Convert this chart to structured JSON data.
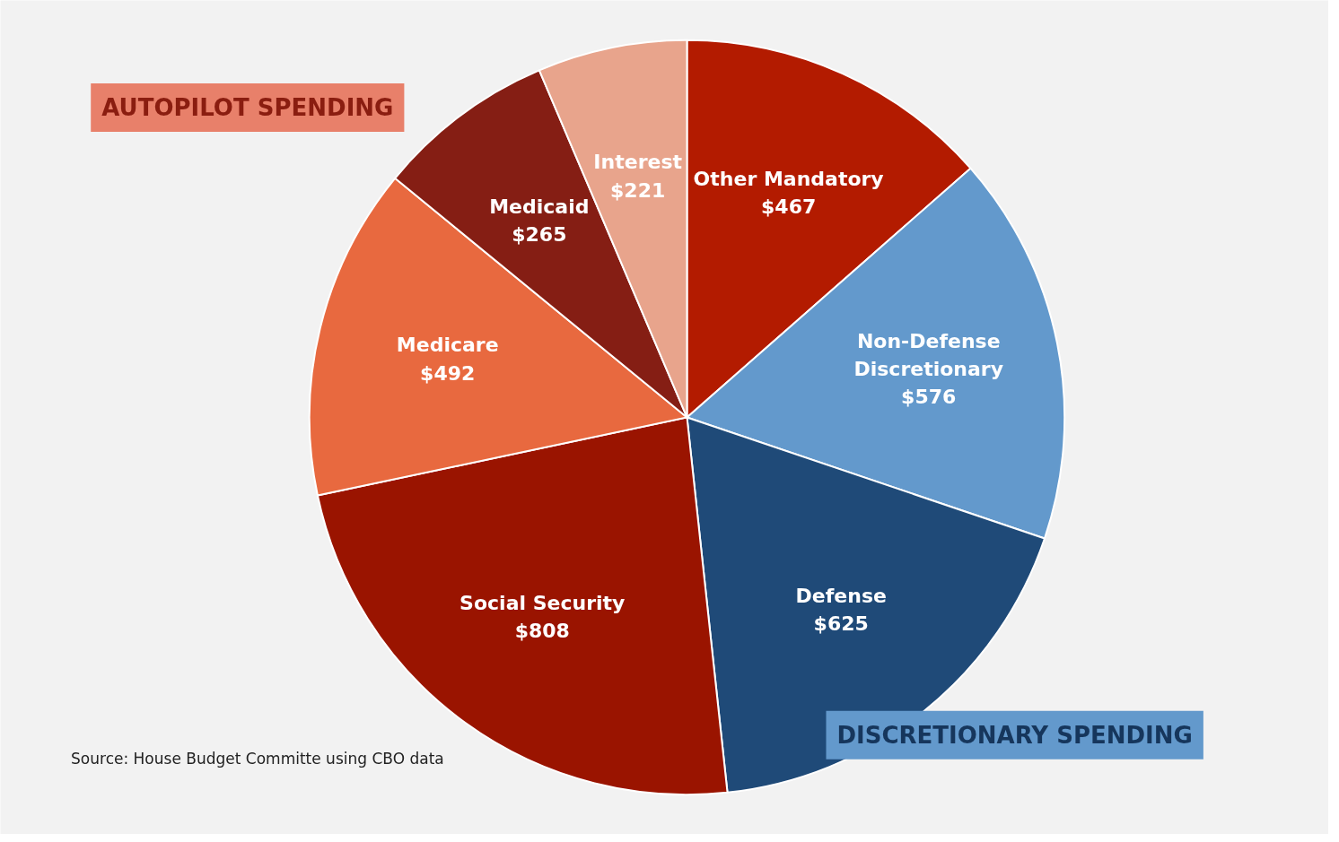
{
  "chart_data": {
    "type": "pie",
    "categories": [
      "Other Mandatory",
      "Non-Defense Discretionary",
      "Defense",
      "Social Security",
      "Medicare",
      "Medicaid",
      "Interest"
    ],
    "values": [
      467,
      576,
      625,
      808,
      492,
      265,
      221
    ],
    "value_labels": [
      "$467",
      "$576",
      "$625",
      "$808",
      "$492",
      "$265",
      "$221"
    ],
    "colors": [
      "#b31b00",
      "#6399cc",
      "#1f4a78",
      "#9a1400",
      "#e8693f",
      "#851e14",
      "#e8a48c"
    ],
    "annotations": [
      "AUTOPILOT SPENDING",
      "DISCRETIONARY SPENDING",
      "Source: House Budget Committe using CBO data"
    ],
    "legend": false
  }
}
